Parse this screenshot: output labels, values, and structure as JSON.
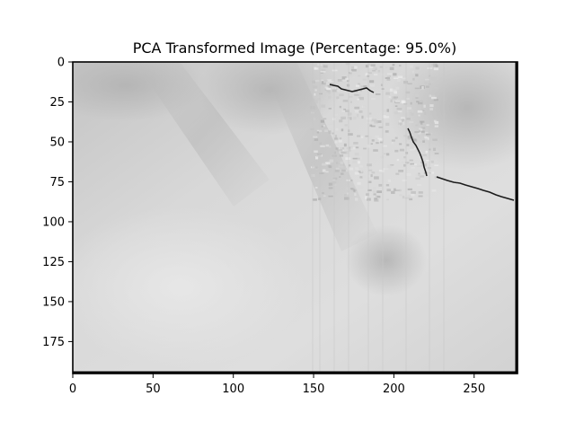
{
  "title": "PCA Transformed Image (Percentage: 95.0%)",
  "image": {
    "description_free": true,
    "width_units": 277,
    "height_units": 195,
    "colormap": "gray"
  },
  "axes": {
    "xlim": [
      0,
      277
    ],
    "ylim": [
      195,
      0
    ],
    "x_ticks": [
      {
        "value": 0,
        "label": "0"
      },
      {
        "value": 50,
        "label": "50"
      },
      {
        "value": 100,
        "label": "100"
      },
      {
        "value": 150,
        "label": "150"
      },
      {
        "value": 200,
        "label": "200"
      },
      {
        "value": 250,
        "label": "250"
      }
    ],
    "y_ticks": [
      {
        "value": 0,
        "label": "0"
      },
      {
        "value": 25,
        "label": "25"
      },
      {
        "value": 50,
        "label": "50"
      },
      {
        "value": 75,
        "label": "75"
      },
      {
        "value": 100,
        "label": "100"
      },
      {
        "value": 125,
        "label": "125"
      },
      {
        "value": 150,
        "label": "150"
      },
      {
        "value": 175,
        "label": "175"
      }
    ]
  },
  "colors": {
    "background": "#ffffff",
    "frame": "#000000",
    "crack": "#1a1a1a"
  }
}
